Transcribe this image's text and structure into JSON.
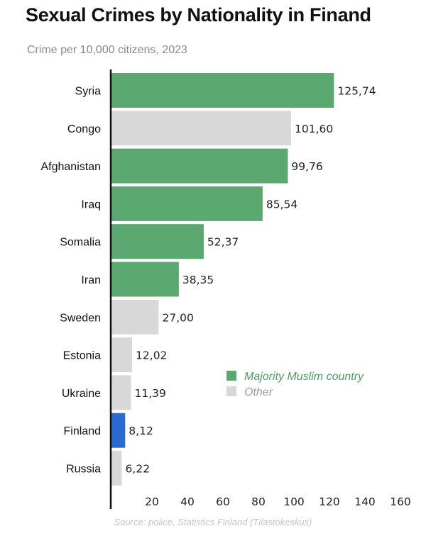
{
  "chart_data": {
    "type": "bar",
    "orientation": "horizontal",
    "title": "Sexual Crimes by Nationality in Finand",
    "subtitle": "Crime per 10,000 citizens, 2023",
    "source": "Source: police, Statistics Finland (Tilastokeskus)",
    "categories": [
      "Syria",
      "Congo",
      "Afghanistan",
      "Iraq",
      "Somalia",
      "Iran",
      "Sweden",
      "Estonia",
      "Ukraine",
      "Finland",
      "Russia"
    ],
    "values": [
      125.74,
      101.6,
      99.76,
      85.54,
      52.37,
      38.35,
      27.0,
      12.02,
      11.39,
      8.12,
      6.22
    ],
    "value_labels": [
      "125,74",
      "101,60",
      "99,76",
      "85,54",
      "52,37",
      "38,35",
      "27,00",
      "12,02",
      "11,39",
      "8,12",
      "6,22"
    ],
    "groups": [
      "muslim",
      "other",
      "muslim",
      "muslim",
      "muslim",
      "muslim",
      "other",
      "other",
      "other",
      "finland",
      "other"
    ],
    "colors": {
      "muslim": "#5aa86f",
      "other": "#d8d8d8",
      "finland": "#2a6bd1"
    },
    "xlim": [
      0,
      160
    ],
    "xticks": [
      20,
      40,
      60,
      80,
      100,
      120,
      140,
      160
    ],
    "legend": {
      "placement": "lower-right",
      "items": [
        {
          "label": "Majority Muslim country",
          "group": "muslim",
          "text_color": "#4d9a63"
        },
        {
          "label": "Other",
          "group": "other",
          "text_color": "#9a9a9a"
        }
      ]
    },
    "grid": false
  }
}
